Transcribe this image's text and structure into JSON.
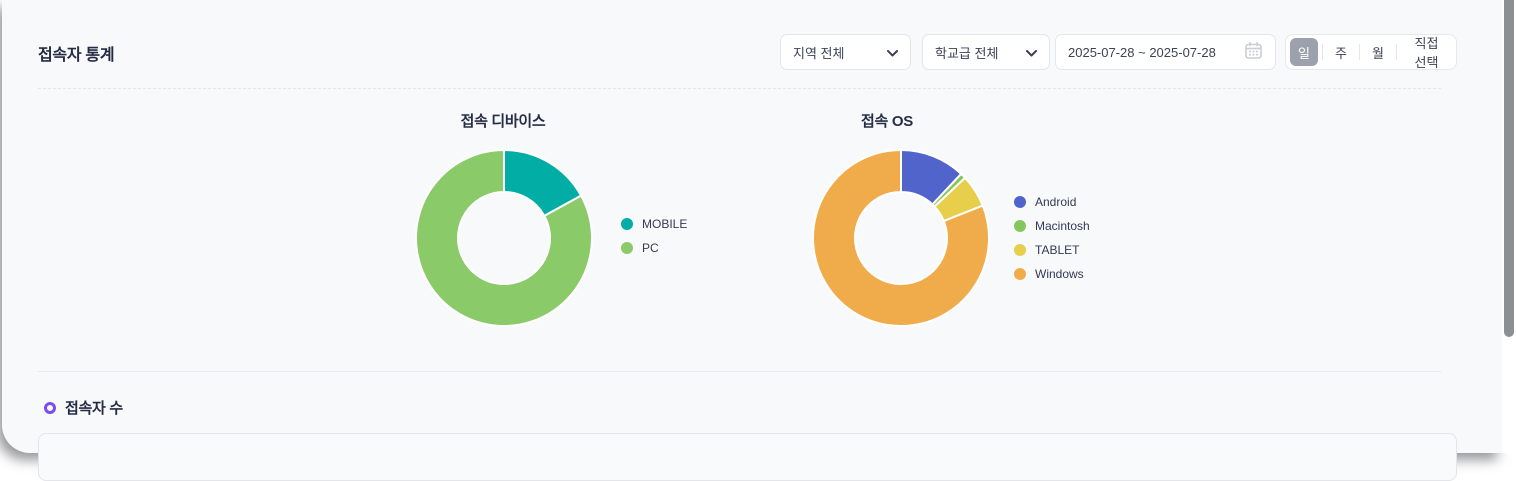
{
  "page": {
    "title": "접속자 통계"
  },
  "filters": {
    "region_select": {
      "value": "지역 전체"
    },
    "school_select": {
      "value": "학교급 전체"
    },
    "date_range": {
      "value": "2025-07-28 ~ 2025-07-28"
    },
    "period_buttons": {
      "items": [
        {
          "label": "일",
          "selected": true
        },
        {
          "label": "주",
          "selected": false
        },
        {
          "label": "월",
          "selected": false
        },
        {
          "label": "직접선택",
          "selected": false
        }
      ]
    }
  },
  "chart_data": [
    {
      "type": "pie",
      "donut": true,
      "title": "접속 디바이스",
      "labels": [
        "MOBILE",
        "PC"
      ],
      "values": [
        17,
        83
      ],
      "colors": [
        "#01ada4",
        "#8bca68"
      ],
      "legend_position": "right",
      "start_angle": 0,
      "direction": "clockwise"
    },
    {
      "type": "pie",
      "donut": true,
      "title": "접속 OS",
      "labels": [
        "Android",
        "Macintosh",
        "TABLET",
        "Windows"
      ],
      "values": [
        12,
        1,
        6,
        81
      ],
      "colors": [
        "#5064cc",
        "#85c75f",
        "#e8cf4b",
        "#f0ac4b"
      ],
      "legend_position": "right",
      "start_angle": 0,
      "direction": "clockwise"
    }
  ],
  "sections": {
    "visitors_title": "접속자 수"
  },
  "colors": {
    "background": "#f8f9fa",
    "accent_purple": "#7c4dee",
    "selected_period_bg": "#9ca2ad",
    "scrollbar_thumb": "#8d9093"
  }
}
